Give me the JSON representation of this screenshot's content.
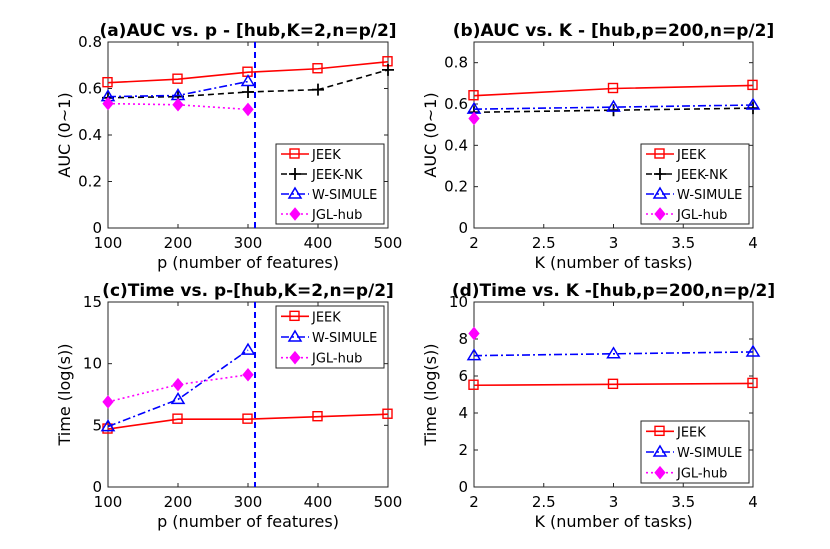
{
  "colors": {
    "JEEK": "#ff0000",
    "JEEK-NK": "#000000",
    "W-SIMULE": "#0000ff",
    "JGL-hub": "#ff00ff",
    "vline": "#0000ff",
    "axis": "#262626"
  },
  "chart_data": [
    {
      "id": "a",
      "type": "line",
      "title": "(a)AUC vs. p - [hub,K=2,n=p/2]",
      "xlabel": "p (number of features)",
      "ylabel": "AUC (0~1)",
      "xlim": [
        100,
        500
      ],
      "ylim": [
        0,
        0.8
      ],
      "xticks": [
        100,
        200,
        300,
        400,
        500
      ],
      "yticks": [
        0,
        0.2,
        0.4,
        0.6,
        0.8
      ],
      "xtick_labels": [
        "100",
        "200",
        "300",
        "400",
        "500"
      ],
      "ytick_labels": [
        "0",
        "0.2",
        "0.4",
        "0.6",
        "0.8"
      ],
      "vline": 310,
      "legend_position": "bottom-right",
      "series": [
        {
          "name": "JEEK",
          "x": [
            100,
            200,
            300,
            400,
            500
          ],
          "values": [
            0.625,
            0.64,
            0.67,
            0.685,
            0.715
          ]
        },
        {
          "name": "JEEK-NK",
          "x": [
            100,
            200,
            300,
            400,
            500
          ],
          "values": [
            0.56,
            0.565,
            0.585,
            0.595,
            0.68
          ]
        },
        {
          "name": "W-SIMULE",
          "x": [
            100,
            200,
            300
          ],
          "values": [
            0.565,
            0.57,
            0.63
          ]
        },
        {
          "name": "JGL-hub",
          "x": [
            100,
            200,
            300
          ],
          "values": [
            0.535,
            0.53,
            0.51
          ]
        }
      ]
    },
    {
      "id": "b",
      "type": "line",
      "title": "(b)AUC vs. K - [hub,p=200,n=p/2]",
      "xlabel": "K (number of tasks)",
      "ylabel": "AUC (0~1)",
      "xlim": [
        2,
        4
      ],
      "ylim": [
        0,
        0.9
      ],
      "xticks": [
        2,
        2.5,
        3,
        3.5,
        4
      ],
      "yticks": [
        0,
        0.2,
        0.4,
        0.6,
        0.8
      ],
      "xtick_labels": [
        "2",
        "2.5",
        "3",
        "3.5",
        "4"
      ],
      "ytick_labels": [
        "0",
        "0.2",
        "0.4",
        "0.6",
        "0.8"
      ],
      "vline": null,
      "legend_position": "bottom-right",
      "series": [
        {
          "name": "JEEK",
          "x": [
            2,
            3,
            4
          ],
          "values": [
            0.64,
            0.675,
            0.69
          ]
        },
        {
          "name": "JEEK-NK",
          "x": [
            2,
            3,
            4
          ],
          "values": [
            0.56,
            0.57,
            0.58
          ]
        },
        {
          "name": "W-SIMULE",
          "x": [
            2,
            3,
            4
          ],
          "values": [
            0.575,
            0.585,
            0.595
          ]
        },
        {
          "name": "JGL-hub",
          "x": [
            2
          ],
          "values": [
            0.53
          ]
        }
      ]
    },
    {
      "id": "c",
      "type": "line",
      "title": "(c)Time vs. p-[hub,K=2,n=p/2]",
      "xlabel": "p (number of features)",
      "ylabel": "Time (log(s))",
      "xlim": [
        100,
        500
      ],
      "ylim": [
        0,
        15
      ],
      "xticks": [
        100,
        200,
        300,
        400,
        500
      ],
      "yticks": [
        0,
        5,
        10,
        15
      ],
      "xtick_labels": [
        "100",
        "200",
        "300",
        "400",
        "500"
      ],
      "ytick_labels": [
        "0",
        "5",
        "10",
        "15"
      ],
      "vline": 310,
      "legend_position": "top-right",
      "series": [
        {
          "name": "JEEK",
          "x": [
            100,
            200,
            300,
            400,
            500
          ],
          "values": [
            4.7,
            5.5,
            5.5,
            5.7,
            5.9
          ]
        },
        {
          "name": "W-SIMULE",
          "x": [
            100,
            200,
            300
          ],
          "values": [
            4.9,
            7.1,
            11.1
          ]
        },
        {
          "name": "JGL-hub",
          "x": [
            100,
            200,
            300
          ],
          "values": [
            6.9,
            8.3,
            9.1
          ]
        }
      ]
    },
    {
      "id": "d",
      "type": "line",
      "title": "(d)Time vs. K -[hub,p=200,n=p/2]",
      "xlabel": "K (number of tasks)",
      "ylabel": "Time (log(s))",
      "xlim": [
        2,
        4
      ],
      "ylim": [
        0,
        10
      ],
      "xticks": [
        2,
        2.5,
        3,
        3.5,
        4
      ],
      "yticks": [
        0,
        2,
        4,
        6,
        8,
        10
      ],
      "xtick_labels": [
        "2",
        "2.5",
        "3",
        "3.5",
        "4"
      ],
      "ytick_labels": [
        "0",
        "2",
        "4",
        "6",
        "8",
        "10"
      ],
      "vline": null,
      "legend_position": "bottom-right",
      "series": [
        {
          "name": "JEEK",
          "x": [
            2,
            3,
            4
          ],
          "values": [
            5.5,
            5.55,
            5.6
          ]
        },
        {
          "name": "W-SIMULE",
          "x": [
            2,
            3,
            4
          ],
          "values": [
            7.1,
            7.2,
            7.3
          ]
        },
        {
          "name": "JGL-hub",
          "x": [
            2
          ],
          "values": [
            8.3
          ]
        }
      ]
    }
  ]
}
